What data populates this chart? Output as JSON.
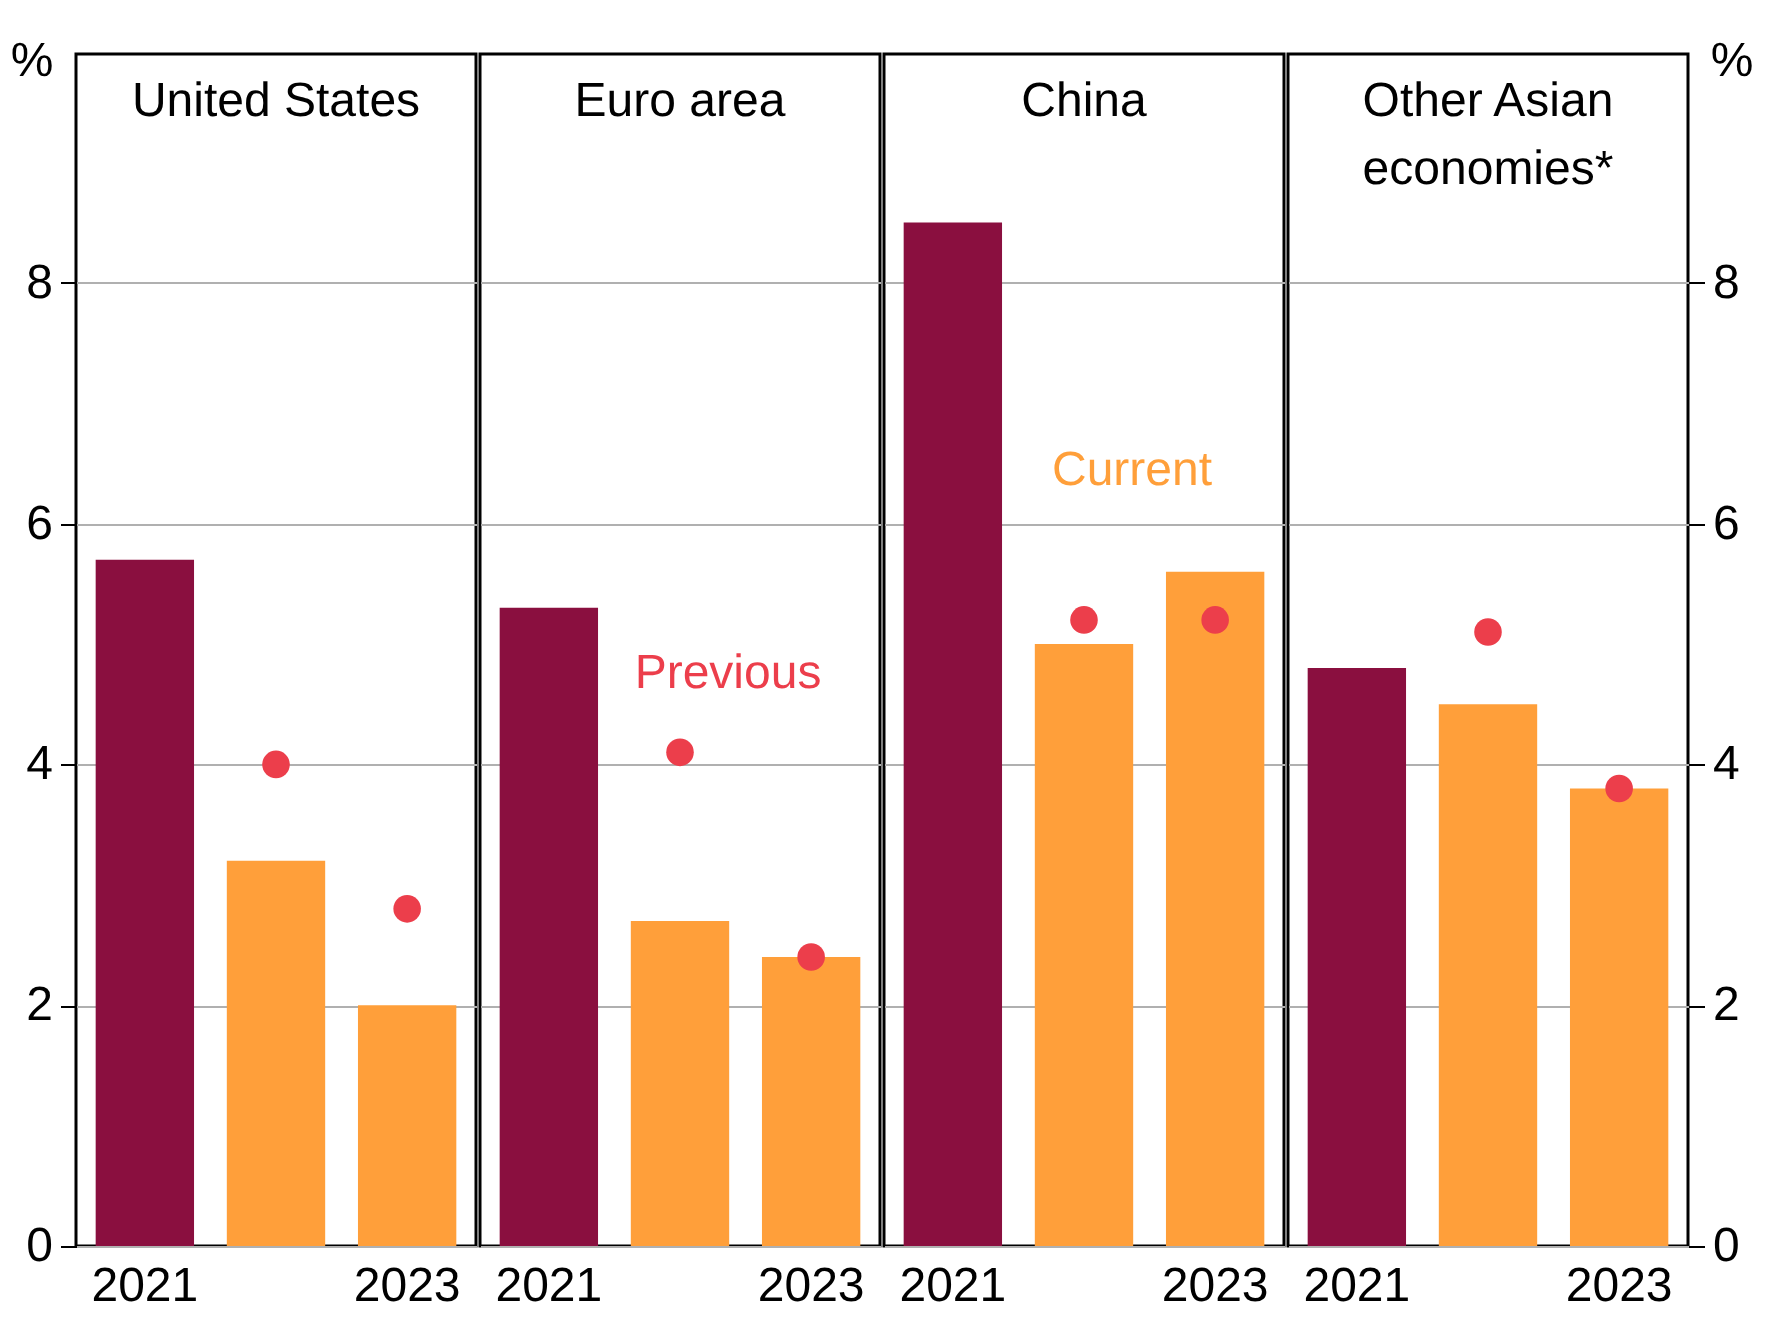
{
  "chart_data": [
    {
      "type": "bar",
      "title": "United States",
      "ylabel": "%",
      "categories": [
        "2021",
        null,
        "2023"
      ],
      "ylim": [
        0,
        9.9
      ],
      "yticks": [
        0,
        2,
        4,
        6,
        8
      ],
      "grid": "y",
      "series": [
        {
          "colors": [
            "#8a0f3f",
            "#ff9f3a",
            "#ff9f3a"
          ],
          "values": [
            5.7,
            3.2,
            2.0
          ]
        },
        {
          "type": "scatter",
          "color": "#ec3e4b",
          "marker": "circle",
          "values": [
            null,
            4.0,
            2.8
          ]
        }
      ]
    },
    {
      "type": "bar",
      "title": "Euro area",
      "categories": [
        "2021",
        null,
        "2023"
      ],
      "ylim": [
        0,
        9.9
      ],
      "yticks": [
        0,
        2,
        4,
        6,
        8
      ],
      "grid": "y",
      "tick_labels": "x",
      "series": [
        {
          "colors": [
            "#8a0f3f",
            "#ff9f3a",
            "#ff9f3a"
          ],
          "values": [
            5.3,
            2.7,
            2.4
          ]
        },
        {
          "type": "scatter",
          "name": "Previous",
          "color": "#ec3e4b",
          "marker": "circle",
          "values": [
            null,
            4.1,
            2.4
          ]
        }
      ]
    },
    {
      "type": "bar",
      "title": "China",
      "categories": [
        "2021",
        null,
        "2023"
      ],
      "ylim": [
        0,
        9.9
      ],
      "yticks": [
        0,
        2,
        4,
        6,
        8
      ],
      "grid": "y",
      "tick_labels": "x",
      "series": [
        {
          "name": "Current",
          "color": "#ff9f3a",
          "colors": [
            "#8a0f3f",
            "#ff9f3a",
            "#ff9f3a"
          ],
          "values": [
            8.5,
            5.0,
            5.6
          ]
        },
        {
          "type": "scatter",
          "color": "#ec3e4b",
          "marker": "circle",
          "values": [
            null,
            5.2,
            5.2
          ]
        }
      ]
    },
    {
      "type": "bar",
      "title": "Other Asian economies*",
      "ylabel": "%",
      "categories": [
        "2021",
        null,
        "2023"
      ],
      "ylim": [
        0,
        9.9
      ],
      "yticks": [
        0,
        2,
        4,
        6,
        8
      ],
      "grid": "y",
      "series": [
        {
          "colors": [
            "#8a0f3f",
            "#ff9f3a",
            "#ff9f3a"
          ],
          "values": [
            4.8,
            4.5,
            3.8
          ]
        },
        {
          "type": "scatter",
          "color": "#ec3e4b",
          "marker": "circle",
          "values": [
            null,
            5.1,
            3.8
          ]
        }
      ]
    }
  ]
}
